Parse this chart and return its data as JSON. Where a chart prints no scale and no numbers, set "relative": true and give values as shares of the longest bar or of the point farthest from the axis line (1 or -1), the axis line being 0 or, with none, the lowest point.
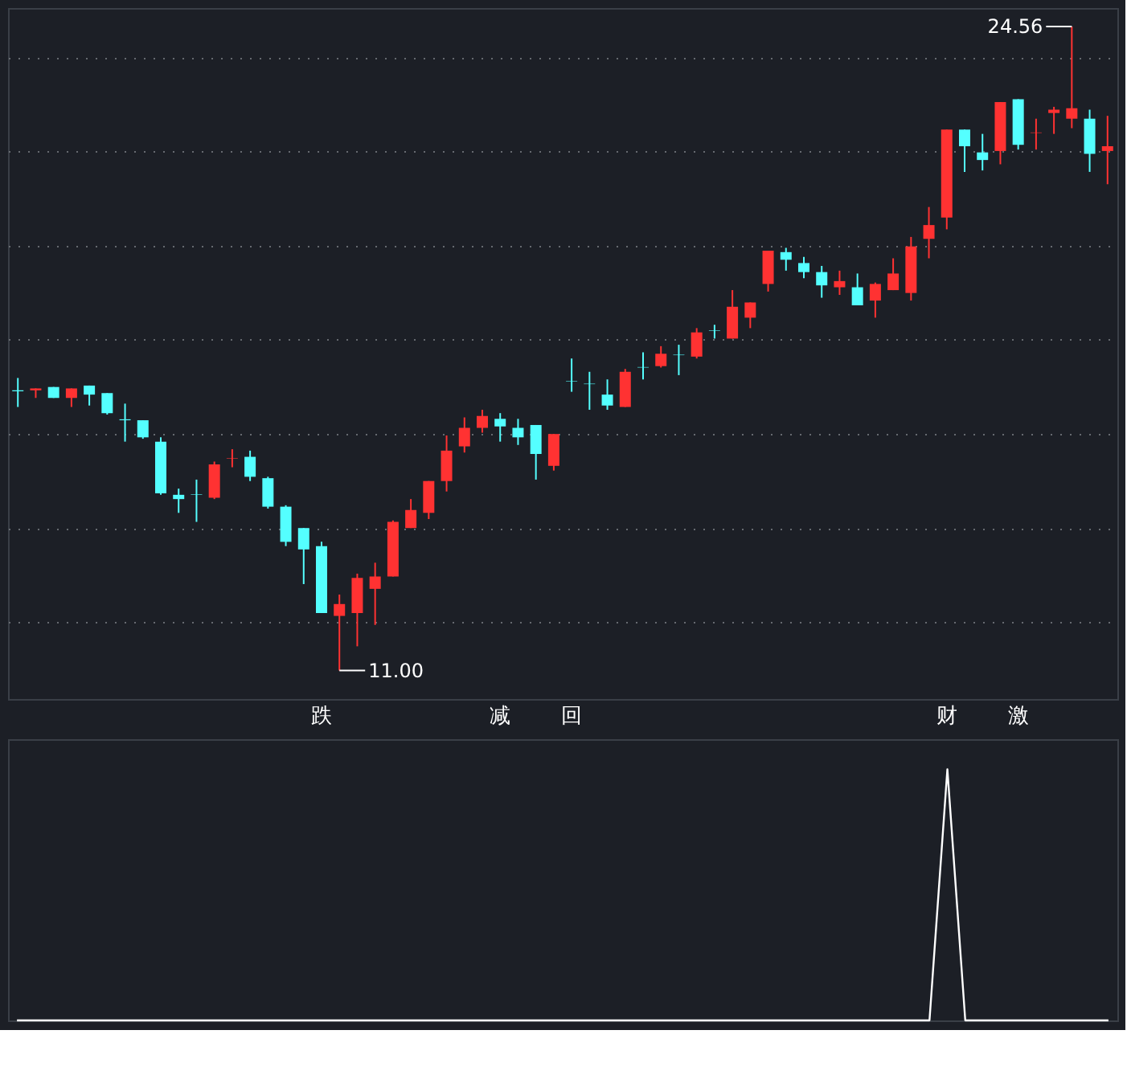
{
  "chart_data": [
    {
      "type": "candlestick",
      "categories": [
        null,
        null,
        null,
        null,
        null,
        null,
        null,
        null,
        null,
        null,
        null,
        null,
        null,
        null,
        null,
        null,
        null,
        "跌",
        null,
        null,
        null,
        null,
        null,
        null,
        null,
        null,
        null,
        "减",
        null,
        null,
        null,
        "回",
        null,
        null,
        null,
        null,
        null,
        null,
        null,
        null,
        null,
        null,
        null,
        null,
        null,
        null,
        null,
        null,
        null,
        null,
        null,
        null,
        "财",
        null,
        null,
        null,
        "激",
        null,
        null,
        null,
        null,
        null
      ],
      "ohlc": [
        [
          16.9,
          17.16,
          16.55,
          16.88
        ],
        [
          16.9,
          16.94,
          16.74,
          16.94
        ],
        [
          16.97,
          16.97,
          16.74,
          16.74
        ],
        [
          16.74,
          16.94,
          16.55,
          16.94
        ],
        [
          17.0,
          17.0,
          16.58,
          16.81
        ],
        [
          16.84,
          16.84,
          16.39,
          16.42
        ],
        [
          16.29,
          16.62,
          15.82,
          16.27
        ],
        [
          16.27,
          16.27,
          15.88,
          15.91
        ],
        [
          15.82,
          15.91,
          14.7,
          14.73
        ],
        [
          14.7,
          14.83,
          14.32,
          14.61
        ],
        [
          14.71,
          15.02,
          14.13,
          14.7
        ],
        [
          14.64,
          15.4,
          14.61,
          15.34
        ],
        [
          15.46,
          15.66,
          15.28,
          15.47
        ],
        [
          15.5,
          15.63,
          14.99,
          15.08
        ],
        [
          15.05,
          15.08,
          14.41,
          14.45
        ],
        [
          14.45,
          14.48,
          13.62,
          13.71
        ],
        [
          14.0,
          14.0,
          12.82,
          13.55
        ],
        [
          13.62,
          13.71,
          12.21,
          12.21
        ],
        [
          12.15,
          12.6,
          11.0,
          12.4
        ],
        [
          12.21,
          13.04,
          11.51,
          12.95
        ],
        [
          12.72,
          13.27,
          11.96,
          12.98
        ],
        [
          12.98,
          14.16,
          12.98,
          14.13
        ],
        [
          14.0,
          14.61,
          14.0,
          14.38
        ],
        [
          14.32,
          14.99,
          14.19,
          14.99
        ],
        [
          14.99,
          15.95,
          14.77,
          15.63
        ],
        [
          15.72,
          16.33,
          15.59,
          16.11
        ],
        [
          16.11,
          16.49,
          16.01,
          16.36
        ],
        [
          16.3,
          16.42,
          15.82,
          16.14
        ],
        [
          16.11,
          16.3,
          15.75,
          15.91
        ],
        [
          16.17,
          16.17,
          15.02,
          15.56
        ],
        [
          15.31,
          15.98,
          15.21,
          15.98
        ],
        [
          17.1,
          17.57,
          16.87,
          17.09
        ],
        [
          17.04,
          17.29,
          16.49,
          17.03
        ],
        [
          16.81,
          17.13,
          16.49,
          16.58
        ],
        [
          16.55,
          17.35,
          16.55,
          17.29
        ],
        [
          17.39,
          17.7,
          17.13,
          17.38
        ],
        [
          17.41,
          17.83,
          17.38,
          17.67
        ],
        [
          17.65,
          17.86,
          17.22,
          17.64
        ],
        [
          17.61,
          18.21,
          17.57,
          18.12
        ],
        [
          18.16,
          18.28,
          17.99,
          18.15
        ],
        [
          17.99,
          19.01,
          17.99,
          18.66
        ],
        [
          18.43,
          18.75,
          18.21,
          18.75
        ],
        [
          19.14,
          19.84,
          18.98,
          19.84
        ],
        [
          19.81,
          19.9,
          19.42,
          19.65
        ],
        [
          19.58,
          19.71,
          19.26,
          19.39
        ],
        [
          19.39,
          19.52,
          18.85,
          19.11
        ],
        [
          19.07,
          19.42,
          18.91,
          19.2
        ],
        [
          19.07,
          19.36,
          18.69,
          18.69
        ],
        [
          18.79,
          19.17,
          18.43,
          19.14
        ],
        [
          19.01,
          19.68,
          19.01,
          19.36
        ],
        [
          18.95,
          20.13,
          18.79,
          19.93
        ],
        [
          20.09,
          20.76,
          19.68,
          20.38
        ],
        [
          20.54,
          22.39,
          20.29,
          22.39
        ],
        [
          22.39,
          22.39,
          21.5,
          22.04
        ],
        [
          21.91,
          22.3,
          21.53,
          21.75
        ],
        [
          21.94,
          22.97,
          21.66,
          22.97
        ],
        [
          23.03,
          23.03,
          21.97,
          22.07
        ],
        [
          22.32,
          22.62,
          21.97,
          22.33
        ],
        [
          22.74,
          22.87,
          22.3,
          22.81
        ],
        [
          22.62,
          24.56,
          22.42,
          22.84
        ],
        [
          22.62,
          22.81,
          21.5,
          21.88
        ],
        [
          21.94,
          22.68,
          21.24,
          22.04
        ]
      ],
      "colors": [
        "#54ffff",
        "#ff3232",
        "#54ffff",
        "#ff3232",
        "#54ffff",
        "#54ffff",
        "#54ffff",
        "#54ffff",
        "#54ffff",
        "#54ffff",
        "#54ffff",
        "#ff3232",
        "#ff3232",
        "#54ffff",
        "#54ffff",
        "#54ffff",
        "#54ffff",
        "#54ffff",
        "#ff3232",
        "#ff3232",
        "#ff3232",
        "#ff3232",
        "#ff3232",
        "#ff3232",
        "#ff3232",
        "#ff3232",
        "#ff3232",
        "#54ffff",
        "#54ffff",
        "#54ffff",
        "#ff3232",
        "#54ffff",
        "#54ffff",
        "#54ffff",
        "#ff3232",
        "#54ffff",
        "#ff3232",
        "#54ffff",
        "#ff3232",
        "#54ffff",
        "#ff3232",
        "#ff3232",
        "#ff3232",
        "#54ffff",
        "#54ffff",
        "#54ffff",
        "#ff3232",
        "#54ffff",
        "#ff3232",
        "#ff3232",
        "#ff3232",
        "#ff3232",
        "#ff3232",
        "#54ffff",
        "#54ffff",
        "#ff3232",
        "#54ffff",
        "#ff3232",
        "#ff3232",
        "#ff3232",
        "#54ffff",
        "#ff3232"
      ],
      "ylim": [
        10.4,
        24.95
      ],
      "yticks": [
        {
          "value": 12.02,
          "label": null
        },
        {
          "value": 14.0,
          "label": null
        },
        {
          "value": 15.98,
          "label": null
        },
        {
          "value": 17.97,
          "label": null
        },
        {
          "value": 19.95,
          "label": null
        },
        {
          "value": 21.93,
          "label": null
        },
        {
          "value": 23.91,
          "label": null
        }
      ],
      "grid": "y",
      "tick_labels": "x",
      "annotations": [
        "24.56",
        "11.00"
      ]
    },
    {
      "type": "line",
      "relative": true,
      "categories": [
        null,
        null,
        null,
        null,
        null,
        null,
        null,
        null,
        null,
        null,
        null,
        null,
        null,
        null,
        null,
        null,
        null,
        null,
        null,
        null,
        null,
        null,
        null,
        null,
        null,
        null,
        null,
        null,
        null,
        null,
        null,
        null,
        null,
        null,
        null,
        null,
        null,
        null,
        null,
        null,
        null,
        null,
        null,
        null,
        null,
        null,
        null,
        null,
        null,
        null,
        null,
        null,
        null,
        null,
        null,
        null,
        null,
        null,
        null,
        null,
        null,
        null
      ],
      "series": [
        {
          "color": "#ffffff",
          "values": [
            0,
            0,
            0,
            0,
            0,
            0,
            0,
            0,
            0,
            0,
            0,
            0,
            0,
            0,
            0,
            0,
            0,
            0,
            0,
            0,
            0,
            0,
            0,
            0,
            0,
            0,
            0,
            0,
            0,
            0,
            0,
            0,
            0,
            0,
            0,
            0,
            0,
            0,
            0,
            0,
            0,
            0,
            0,
            0,
            0,
            0,
            0,
            0,
            0,
            0,
            0,
            0,
            1,
            0,
            0,
            0,
            0,
            0,
            0,
            0,
            0,
            0
          ]
        }
      ],
      "tick_labels": false
    }
  ]
}
